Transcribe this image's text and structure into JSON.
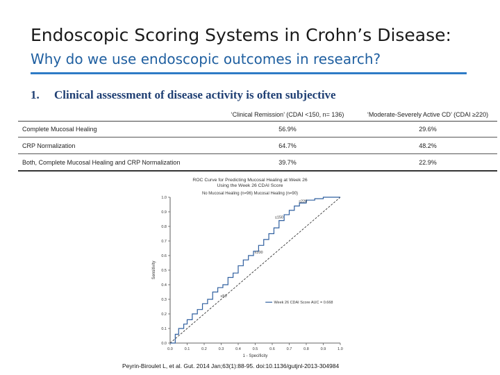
{
  "title": "Endoscopic Scoring Systems in Crohn’s Disease:",
  "subtitle": "Why do we use endoscopic outcomes in research?",
  "point": {
    "number": "1.",
    "text": "Clinical assessment of disease activity is often subjective"
  },
  "table": {
    "headers": [
      "",
      "‘Clinical Remission’ (CDAI <150, n= 136)",
      "‘Moderate-Severely Active CD’ (CDAI ≥220)"
    ],
    "rows": [
      [
        "Complete Mucosal Healing",
        "56.9%",
        "29.6%"
      ],
      [
        "CRP Normalization",
        "64.7%",
        "48.2%"
      ],
      [
        "Both, Complete Mucosal Healing and CRP Normalization",
        "39.7%",
        "22.9%"
      ]
    ]
  },
  "chart_data": {
    "type": "line",
    "title": "ROC Curve for Predicting Mucosal Healing at Week 26 Using the Week 26 CDAI Score",
    "legend_text": "No Mucosal Healing (n=96)   Mucosal Healing (n=90)",
    "xlabel": "1 - Specificity",
    "ylabel": "Sensitivity",
    "xlim": [
      0,
      1
    ],
    "ylim": [
      0,
      1
    ],
    "xticks": [
      "0.0",
      "0.1",
      "0.2",
      "0.3",
      "0.4",
      "0.5",
      "0.6",
      "0.7",
      "0.8",
      "0.9",
      "1.0"
    ],
    "yticks": [
      "0.0",
      "0.1",
      "0.2",
      "0.3",
      "0.4",
      "0.5",
      "0.6",
      "0.7",
      "0.8",
      "0.9",
      "1.0"
    ],
    "series": [
      {
        "name": "Week 26 CDAI Score AUC = 0.668",
        "x": [
          0,
          0.03,
          0.05,
          0.08,
          0.1,
          0.13,
          0.16,
          0.19,
          0.22,
          0.25,
          0.28,
          0.31,
          0.34,
          0.37,
          0.4,
          0.43,
          0.46,
          0.49,
          0.52,
          0.55,
          0.58,
          0.61,
          0.64,
          0.67,
          0.7,
          0.73,
          0.76,
          0.8,
          0.85,
          0.9,
          0.95,
          1.0
        ],
        "y": [
          0,
          0.06,
          0.1,
          0.13,
          0.16,
          0.2,
          0.23,
          0.27,
          0.3,
          0.35,
          0.38,
          0.4,
          0.45,
          0.48,
          0.53,
          0.57,
          0.6,
          0.63,
          0.67,
          0.71,
          0.75,
          0.79,
          0.84,
          0.88,
          0.91,
          0.94,
          0.96,
          0.98,
          0.99,
          1.0,
          1.0,
          1.0
        ]
      },
      {
        "name": "reference",
        "x": [
          0,
          1
        ],
        "y": [
          0,
          1
        ]
      }
    ],
    "annotations": [
      {
        "label": "≤50",
        "x": 0.32,
        "y": 0.3
      },
      {
        "label": "≤100",
        "x": 0.52,
        "y": 0.6
      },
      {
        "label": "≤150",
        "x": 0.64,
        "y": 0.84
      },
      {
        "label": "≤220",
        "x": 0.78,
        "y": 0.95
      }
    ]
  },
  "citation": "Peyrin-Biroulet L, et al. Gut. 2014 Jan;63(1):88-95. doi:10.1136/gutjnl-2013-304984"
}
